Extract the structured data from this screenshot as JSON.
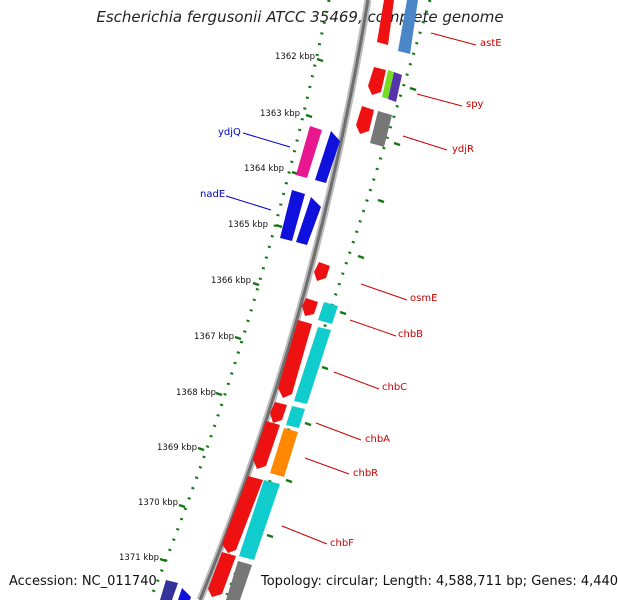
{
  "title": "Escherichia fergusonii ATCC 35469, complete genome",
  "footer": {
    "accession": "Accession: NC_011740",
    "topology": "Topology: circular; Length: 4,588,711 bp; Genes: 4,440"
  },
  "colors": {
    "reverse_label": "#0000cc",
    "forward_label": "#cc0000",
    "tick": "#117711",
    "backbone": "#888888"
  },
  "scale_labels": [
    "1362 kbp",
    "1363 kbp",
    "1364 kbp",
    "1365 kbp",
    "1366 kbp",
    "1367 kbp",
    "1368 kbp",
    "1369 kbp",
    "1370 kbp",
    "1371 kbp"
  ],
  "gene_labels": {
    "reverse": [
      "ydjQ",
      "nadE"
    ],
    "forward": [
      "astE",
      "spy",
      "ydjR",
      "osmE",
      "chbB",
      "chbC",
      "chbA",
      "chbR",
      "chbF"
    ]
  }
}
